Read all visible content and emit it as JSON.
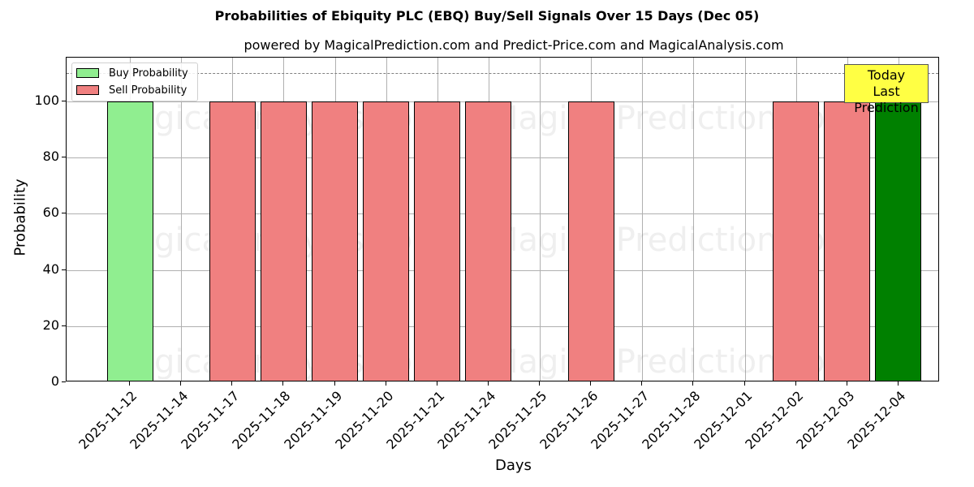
{
  "chart_data": {
    "type": "bar",
    "title": "Probabilities of Ebiquity PLC (EBQ) Buy/Sell Signals Over 15 Days (Dec 05)",
    "subtitle": "powered by MagicalPrediction.com and Predict-Price.com and MagicalAnalysis.com",
    "xlabel": "Days",
    "ylabel": "Probability",
    "ylim": [
      0,
      115
    ],
    "yticks": [
      0,
      20,
      40,
      60,
      80,
      100
    ],
    "grid": true,
    "legend_position": "upper left",
    "categories": [
      "2025-11-12",
      "2025-11-14",
      "2025-11-17",
      "2025-11-18",
      "2025-11-19",
      "2025-11-20",
      "2025-11-21",
      "2025-11-24",
      "2025-11-25",
      "2025-11-26",
      "2025-11-27",
      "2025-11-28",
      "2025-12-01",
      "2025-12-02",
      "2025-12-03",
      "2025-12-04"
    ],
    "series": [
      {
        "name": "Buy Probability",
        "color": "#90ee90",
        "values": [
          100,
          0,
          0,
          0,
          0,
          0,
          0,
          0,
          0,
          0,
          0,
          0,
          0,
          0,
          0,
          100
        ]
      },
      {
        "name": "Sell Probability",
        "color": "#f08080",
        "values": [
          0,
          0,
          100,
          100,
          100,
          100,
          100,
          100,
          0,
          100,
          0,
          0,
          0,
          100,
          100,
          0
        ]
      }
    ],
    "highlight": {
      "category": "2025-12-04",
      "color": "#008000"
    },
    "reference_line": {
      "y": 110,
      "style": "dashed",
      "color": "#808080"
    },
    "annotations": [
      {
        "text": "Today\nLast Prediction",
        "line1": "Today",
        "line2": "Last Prediction",
        "background": "#ffff44"
      }
    ],
    "watermarks": [
      "MagicalAnalysis.com",
      "Magica Prediction.com"
    ]
  }
}
